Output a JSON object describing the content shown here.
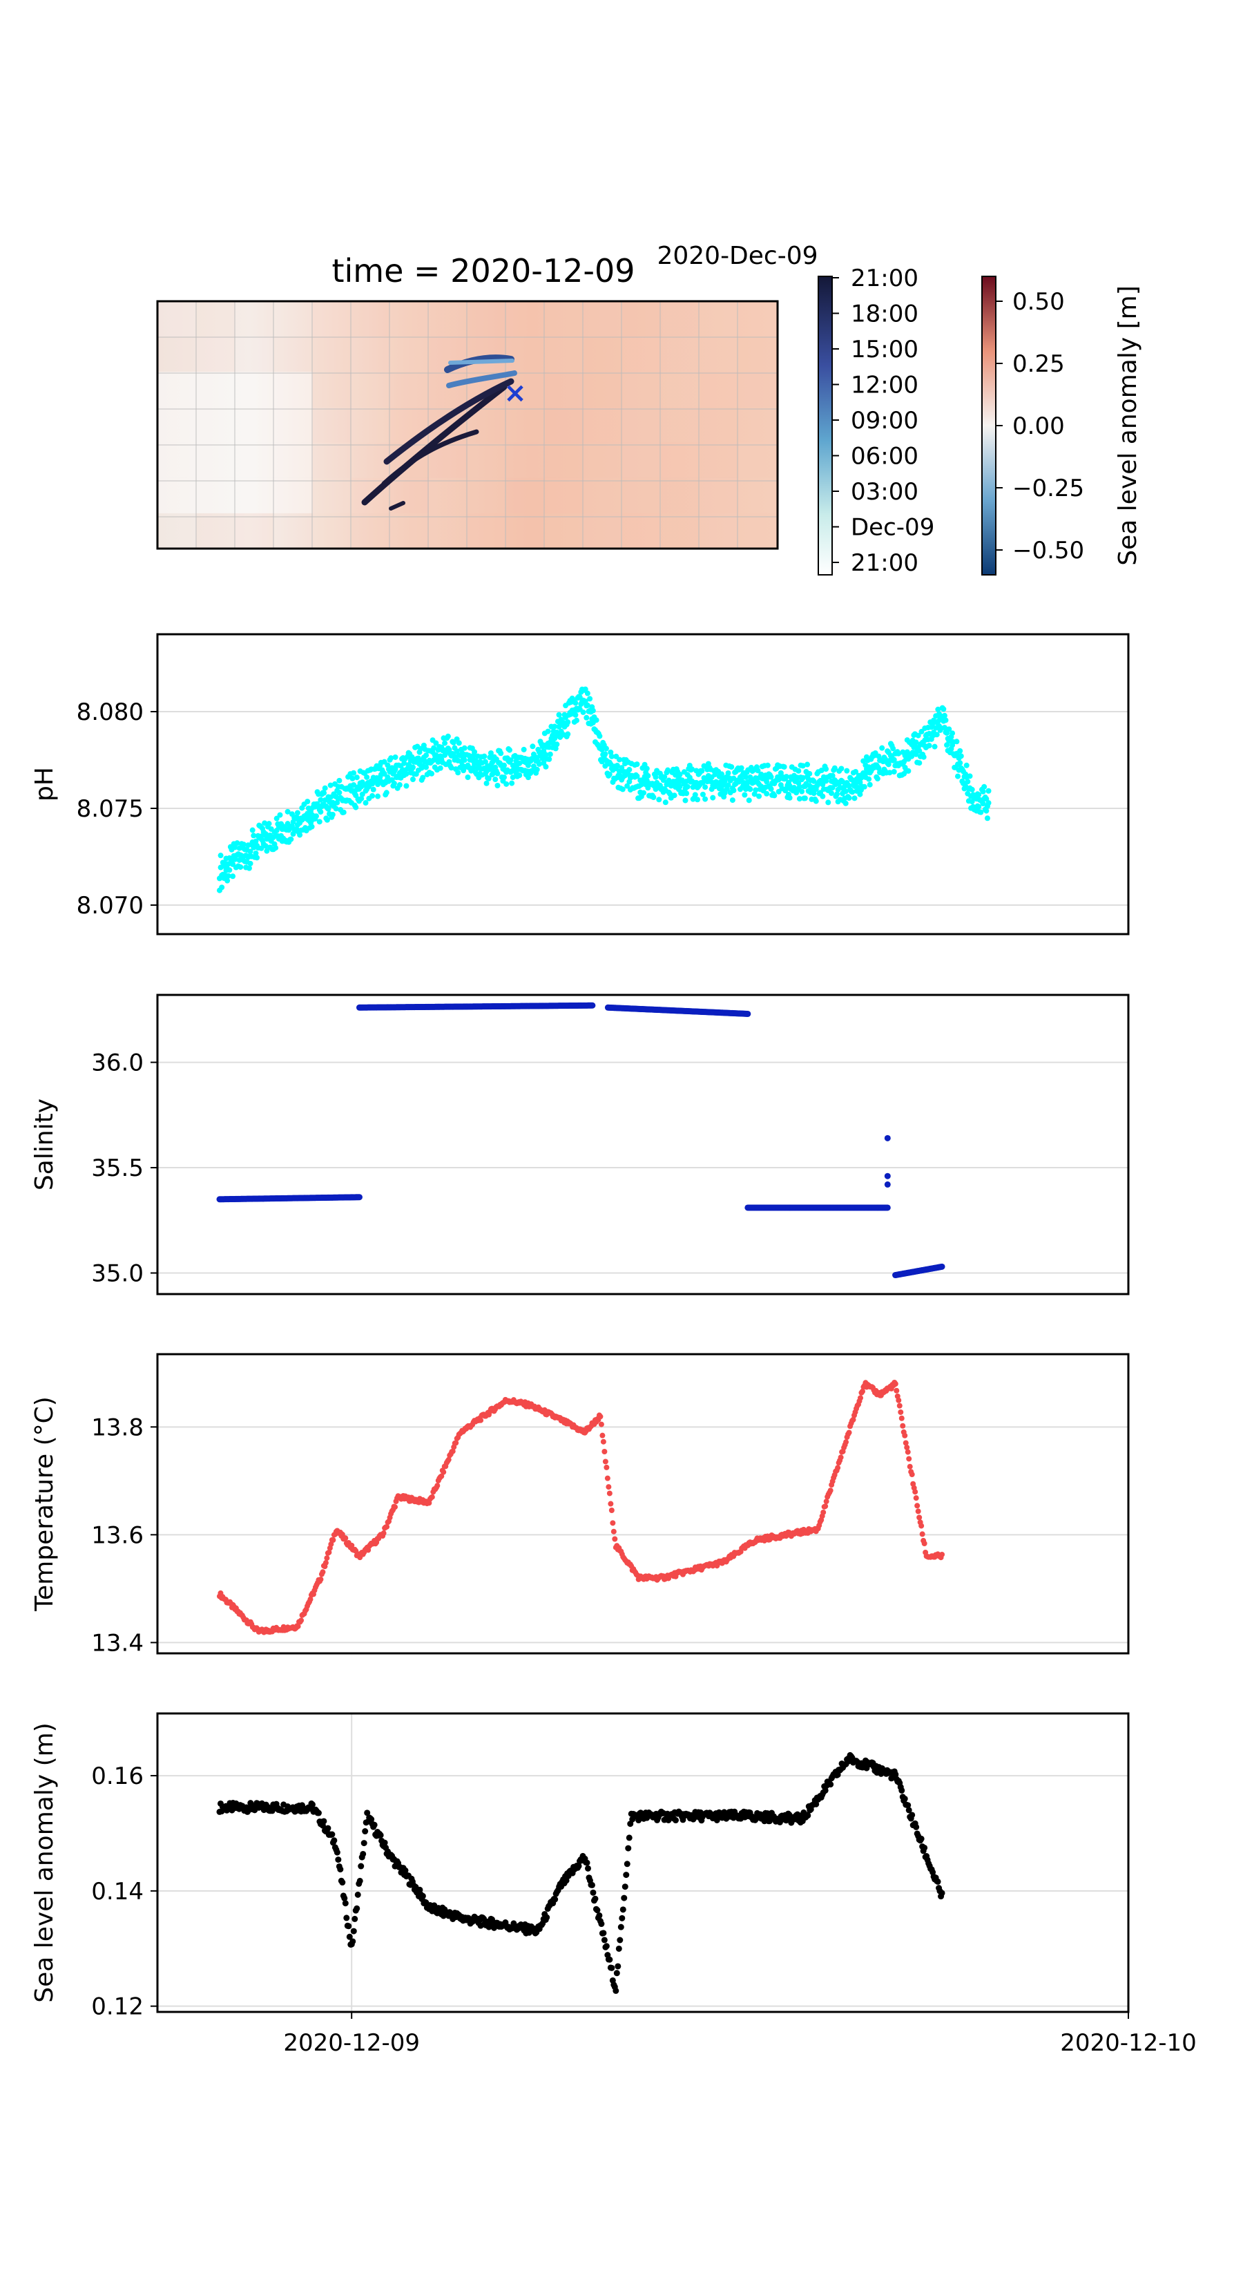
{
  "map_panel": {
    "title": "time = 2020-12-09",
    "colorbar_time_title": "2020-Dec-09",
    "time_colorbar_ticks": [
      "21:00",
      "18:00",
      "15:00",
      "12:00",
      "09:00",
      "06:00",
      "03:00",
      "Dec-09",
      "21:00"
    ],
    "sla_colorbar_label": "Sea level anomaly [m]",
    "sla_colorbar_ticks": [
      "0.50",
      "0.25",
      "0.00",
      "−0.25",
      "−0.50"
    ],
    "sla_range": [
      -0.6,
      0.6
    ],
    "marker_symbol": "×",
    "colors": {
      "track_start": "#e8f8f5",
      "track_mid": "#4a7fc0",
      "track_end": "#1a1a3a",
      "marker": "#1f3fd1",
      "sla_low": "#0b3a73",
      "sla_high": "#6b0c1e"
    }
  },
  "chart_data": [
    {
      "id": "ph",
      "type": "scatter",
      "ylabel": "pH",
      "color": "#00ffff",
      "ylim": [
        8.0685,
        8.084
      ],
      "yticks": [
        8.07,
        8.075,
        8.08
      ],
      "ytick_labels": [
        "8.070",
        "8.075",
        "8.080"
      ],
      "grid": true,
      "xlim": [
        -0.25,
        1.0
      ],
      "x": [
        -0.17,
        -0.12,
        -0.06,
        0.0,
        0.06,
        0.12,
        0.18,
        0.24,
        0.28,
        0.3,
        0.33,
        0.36,
        0.4,
        0.46,
        0.52,
        0.58,
        0.64,
        0.69,
        0.72,
        0.76,
        0.8,
        0.82
      ],
      "y": [
        8.072,
        8.0735,
        8.075,
        8.0762,
        8.0772,
        8.0782,
        8.0773,
        8.0778,
        8.08,
        8.0808,
        8.0775,
        8.0768,
        8.0765,
        8.0767,
        8.0766,
        8.0767,
        8.0764,
        8.0778,
        8.078,
        8.0798,
        8.0758,
        8.0754
      ]
    },
    {
      "id": "salinity",
      "type": "scatter",
      "ylabel": "Salinity",
      "color": "#0a1fbf",
      "ylim": [
        34.9,
        36.32
      ],
      "yticks": [
        35.0,
        35.5,
        36.0
      ],
      "ytick_labels": [
        "35.0",
        "35.5",
        "36.0"
      ],
      "grid": true,
      "xlim": [
        -0.25,
        1.0
      ],
      "segments": [
        {
          "x": [
            -0.17,
            0.01
          ],
          "y": [
            35.35,
            35.36
          ]
        },
        {
          "x": [
            0.01,
            0.31
          ],
          "y": [
            36.26,
            36.27
          ]
        },
        {
          "x": [
            0.33,
            0.51
          ],
          "y": [
            36.26,
            36.23
          ]
        },
        {
          "x": [
            0.51,
            0.69
          ],
          "y": [
            35.31,
            35.31
          ]
        },
        {
          "x": [
            0.7,
            0.76
          ],
          "y": [
            34.99,
            35.03
          ]
        }
      ],
      "x": [
        -0.17,
        0.01,
        0.02,
        0.31,
        0.33,
        0.51,
        0.52,
        0.6,
        0.69,
        0.69,
        0.7,
        0.76
      ],
      "y": [
        35.35,
        35.36,
        36.26,
        36.27,
        36.26,
        36.23,
        35.31,
        35.31,
        35.33,
        35.64,
        34.98,
        35.03
      ]
    },
    {
      "id": "temperature",
      "type": "scatter",
      "ylabel": "Temperature (°C)",
      "color": "#f24a4a",
      "ylim": [
        13.38,
        13.935
      ],
      "yticks": [
        13.4,
        13.6,
        13.8
      ],
      "ytick_labels": [
        "13.4",
        "13.6",
        "13.8"
      ],
      "grid": true,
      "xlim": [
        -0.25,
        1.0
      ],
      "x": [
        -0.17,
        -0.12,
        -0.07,
        -0.04,
        -0.02,
        0.01,
        0.04,
        0.06,
        0.1,
        0.14,
        0.2,
        0.23,
        0.26,
        0.3,
        0.32,
        0.34,
        0.37,
        0.4,
        0.48,
        0.52,
        0.6,
        0.66,
        0.68,
        0.7,
        0.74,
        0.76
      ],
      "y": [
        13.49,
        13.42,
        13.43,
        13.52,
        13.61,
        13.56,
        13.6,
        13.67,
        13.66,
        13.79,
        13.85,
        13.84,
        13.82,
        13.79,
        13.82,
        13.58,
        13.52,
        13.52,
        13.55,
        13.59,
        13.61,
        13.88,
        13.86,
        13.88,
        13.56,
        13.56
      ]
    },
    {
      "id": "sla",
      "type": "scatter",
      "ylabel": "Sea level anomaly (m)",
      "color": "#000000",
      "ylim": [
        0.119,
        0.1708
      ],
      "yticks": [
        0.12,
        0.14,
        0.16
      ],
      "ytick_labels": [
        "0.12",
        "0.14",
        "0.16"
      ],
      "grid": true,
      "xlim": [
        -0.25,
        1.0
      ],
      "xticks": [
        0.0,
        1.0
      ],
      "xtick_labels": [
        "2020-12-09",
        "2020-12-10"
      ],
      "x": [
        -0.17,
        -0.05,
        -0.02,
        0.0,
        0.02,
        0.05,
        0.08,
        0.1,
        0.15,
        0.2,
        0.24,
        0.27,
        0.3,
        0.34,
        0.36,
        0.38,
        0.45,
        0.51,
        0.58,
        0.64,
        0.7,
        0.76
      ],
      "y": [
        0.1545,
        0.1545,
        0.148,
        0.13,
        0.153,
        0.146,
        0.141,
        0.137,
        0.135,
        0.134,
        0.133,
        0.141,
        0.146,
        0.123,
        0.153,
        0.153,
        0.153,
        0.153,
        0.1525,
        0.163,
        0.16,
        0.139
      ]
    }
  ]
}
